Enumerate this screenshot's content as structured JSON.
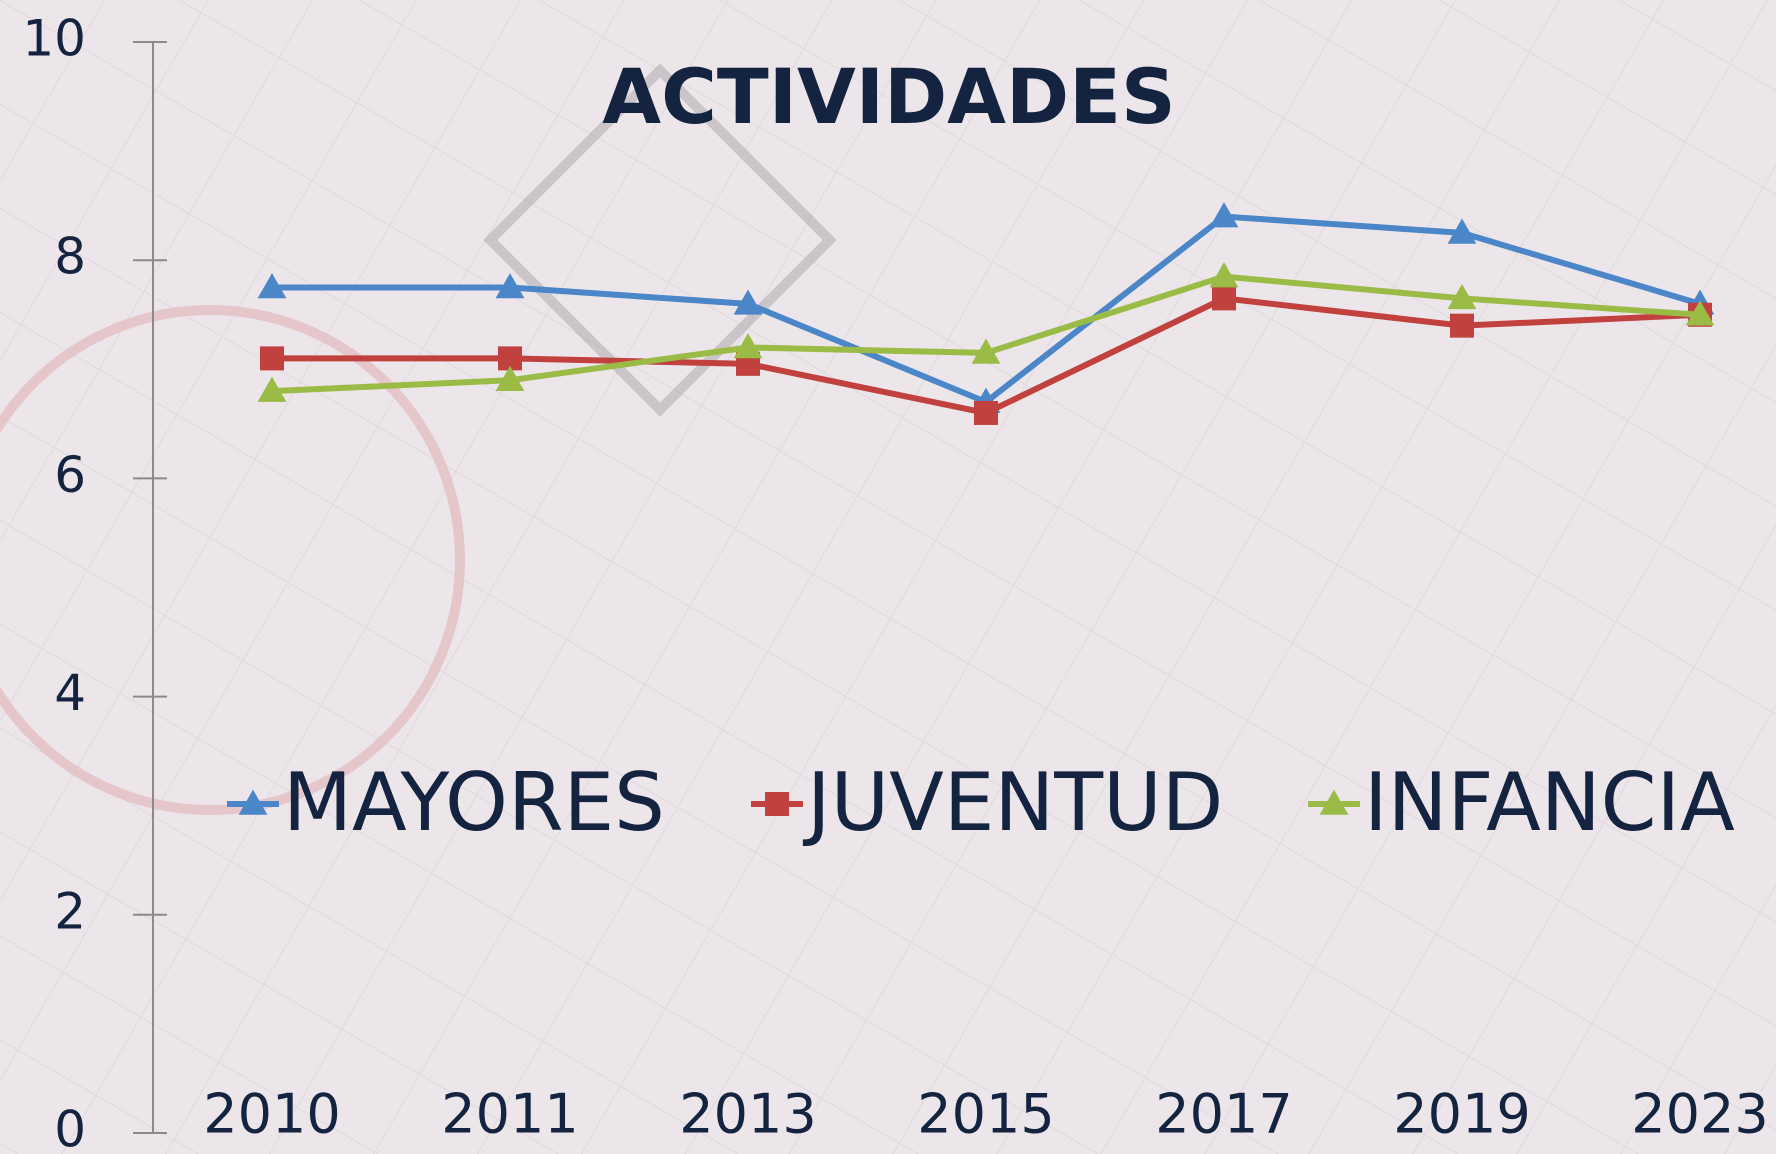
{
  "chart_data": {
    "type": "line",
    "title": "ACTIVIDADES",
    "categories": [
      "2010",
      "2011",
      "2013",
      "2015",
      "2017",
      "2019",
      "2023"
    ],
    "series": [
      {
        "name": "MAYORES",
        "color": "#4a86c8",
        "marker": "triangle",
        "values": [
          7.75,
          7.75,
          7.6,
          6.7,
          8.4,
          8.25,
          7.6
        ]
      },
      {
        "name": "JUVENTUD",
        "color": "#c0413d",
        "marker": "square",
        "values": [
          7.1,
          7.1,
          7.05,
          6.6,
          7.65,
          7.4,
          7.5
        ]
      },
      {
        "name": "INFANCIA",
        "color": "#9bbb47",
        "marker": "triangle",
        "values": [
          6.8,
          6.9,
          7.2,
          7.15,
          7.85,
          7.65,
          7.5
        ]
      }
    ],
    "ylim": [
      0,
      10
    ],
    "yticks": [
      0,
      2,
      4,
      6,
      8,
      10
    ]
  }
}
